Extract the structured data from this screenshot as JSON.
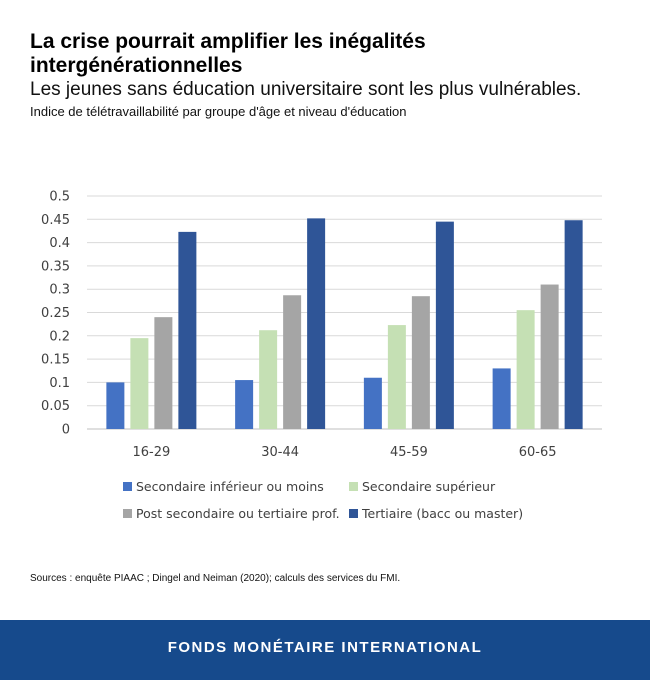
{
  "header": {
    "title": "La crise pourrait amplifier les inégalités intergénérationnelles",
    "subtitle": "Les jeunes sans éducation universitaire sont les plus vulnérables.",
    "caption": "Indice de télétravaillabilité par groupe d'âge et niveau d'éducation"
  },
  "chart_data": {
    "type": "bar",
    "title": "",
    "xlabel": "",
    "ylabel": "",
    "categories": [
      "16-29",
      "30-44",
      "45-59",
      "60-65"
    ],
    "yticks": [
      "0",
      "0.05",
      "0.1",
      "0.15",
      "0.2",
      "0.25",
      "0.3",
      "0.35",
      "0.4",
      "0.45",
      "0.5"
    ],
    "ylim": [
      0,
      0.5
    ],
    "grid": true,
    "legend_position": "bottom",
    "series": [
      {
        "name": "Secondaire inférieur ou moins",
        "color": "#4472c4",
        "values": [
          0.1,
          0.105,
          0.11,
          0.13
        ]
      },
      {
        "name": "Secondaire supérieur",
        "color": "#c5e0b4",
        "values": [
          0.195,
          0.212,
          0.223,
          0.255
        ]
      },
      {
        "name": "Post secondaire ou tertiaire prof.",
        "color": "#a5a5a5",
        "values": [
          0.24,
          0.287,
          0.285,
          0.31
        ]
      },
      {
        "name": "Tertiaire (bacc ou master)",
        "color": "#2f5597",
        "values": [
          0.423,
          0.452,
          0.445,
          0.448
        ]
      }
    ]
  },
  "source": "Sources : enquête PIAAC ; Dingel and Neiman (2020); calculs des services du FMI.",
  "footer": {
    "label": "FONDS MONÉTAIRE INTERNATIONAL",
    "color": "#164a8c"
  }
}
